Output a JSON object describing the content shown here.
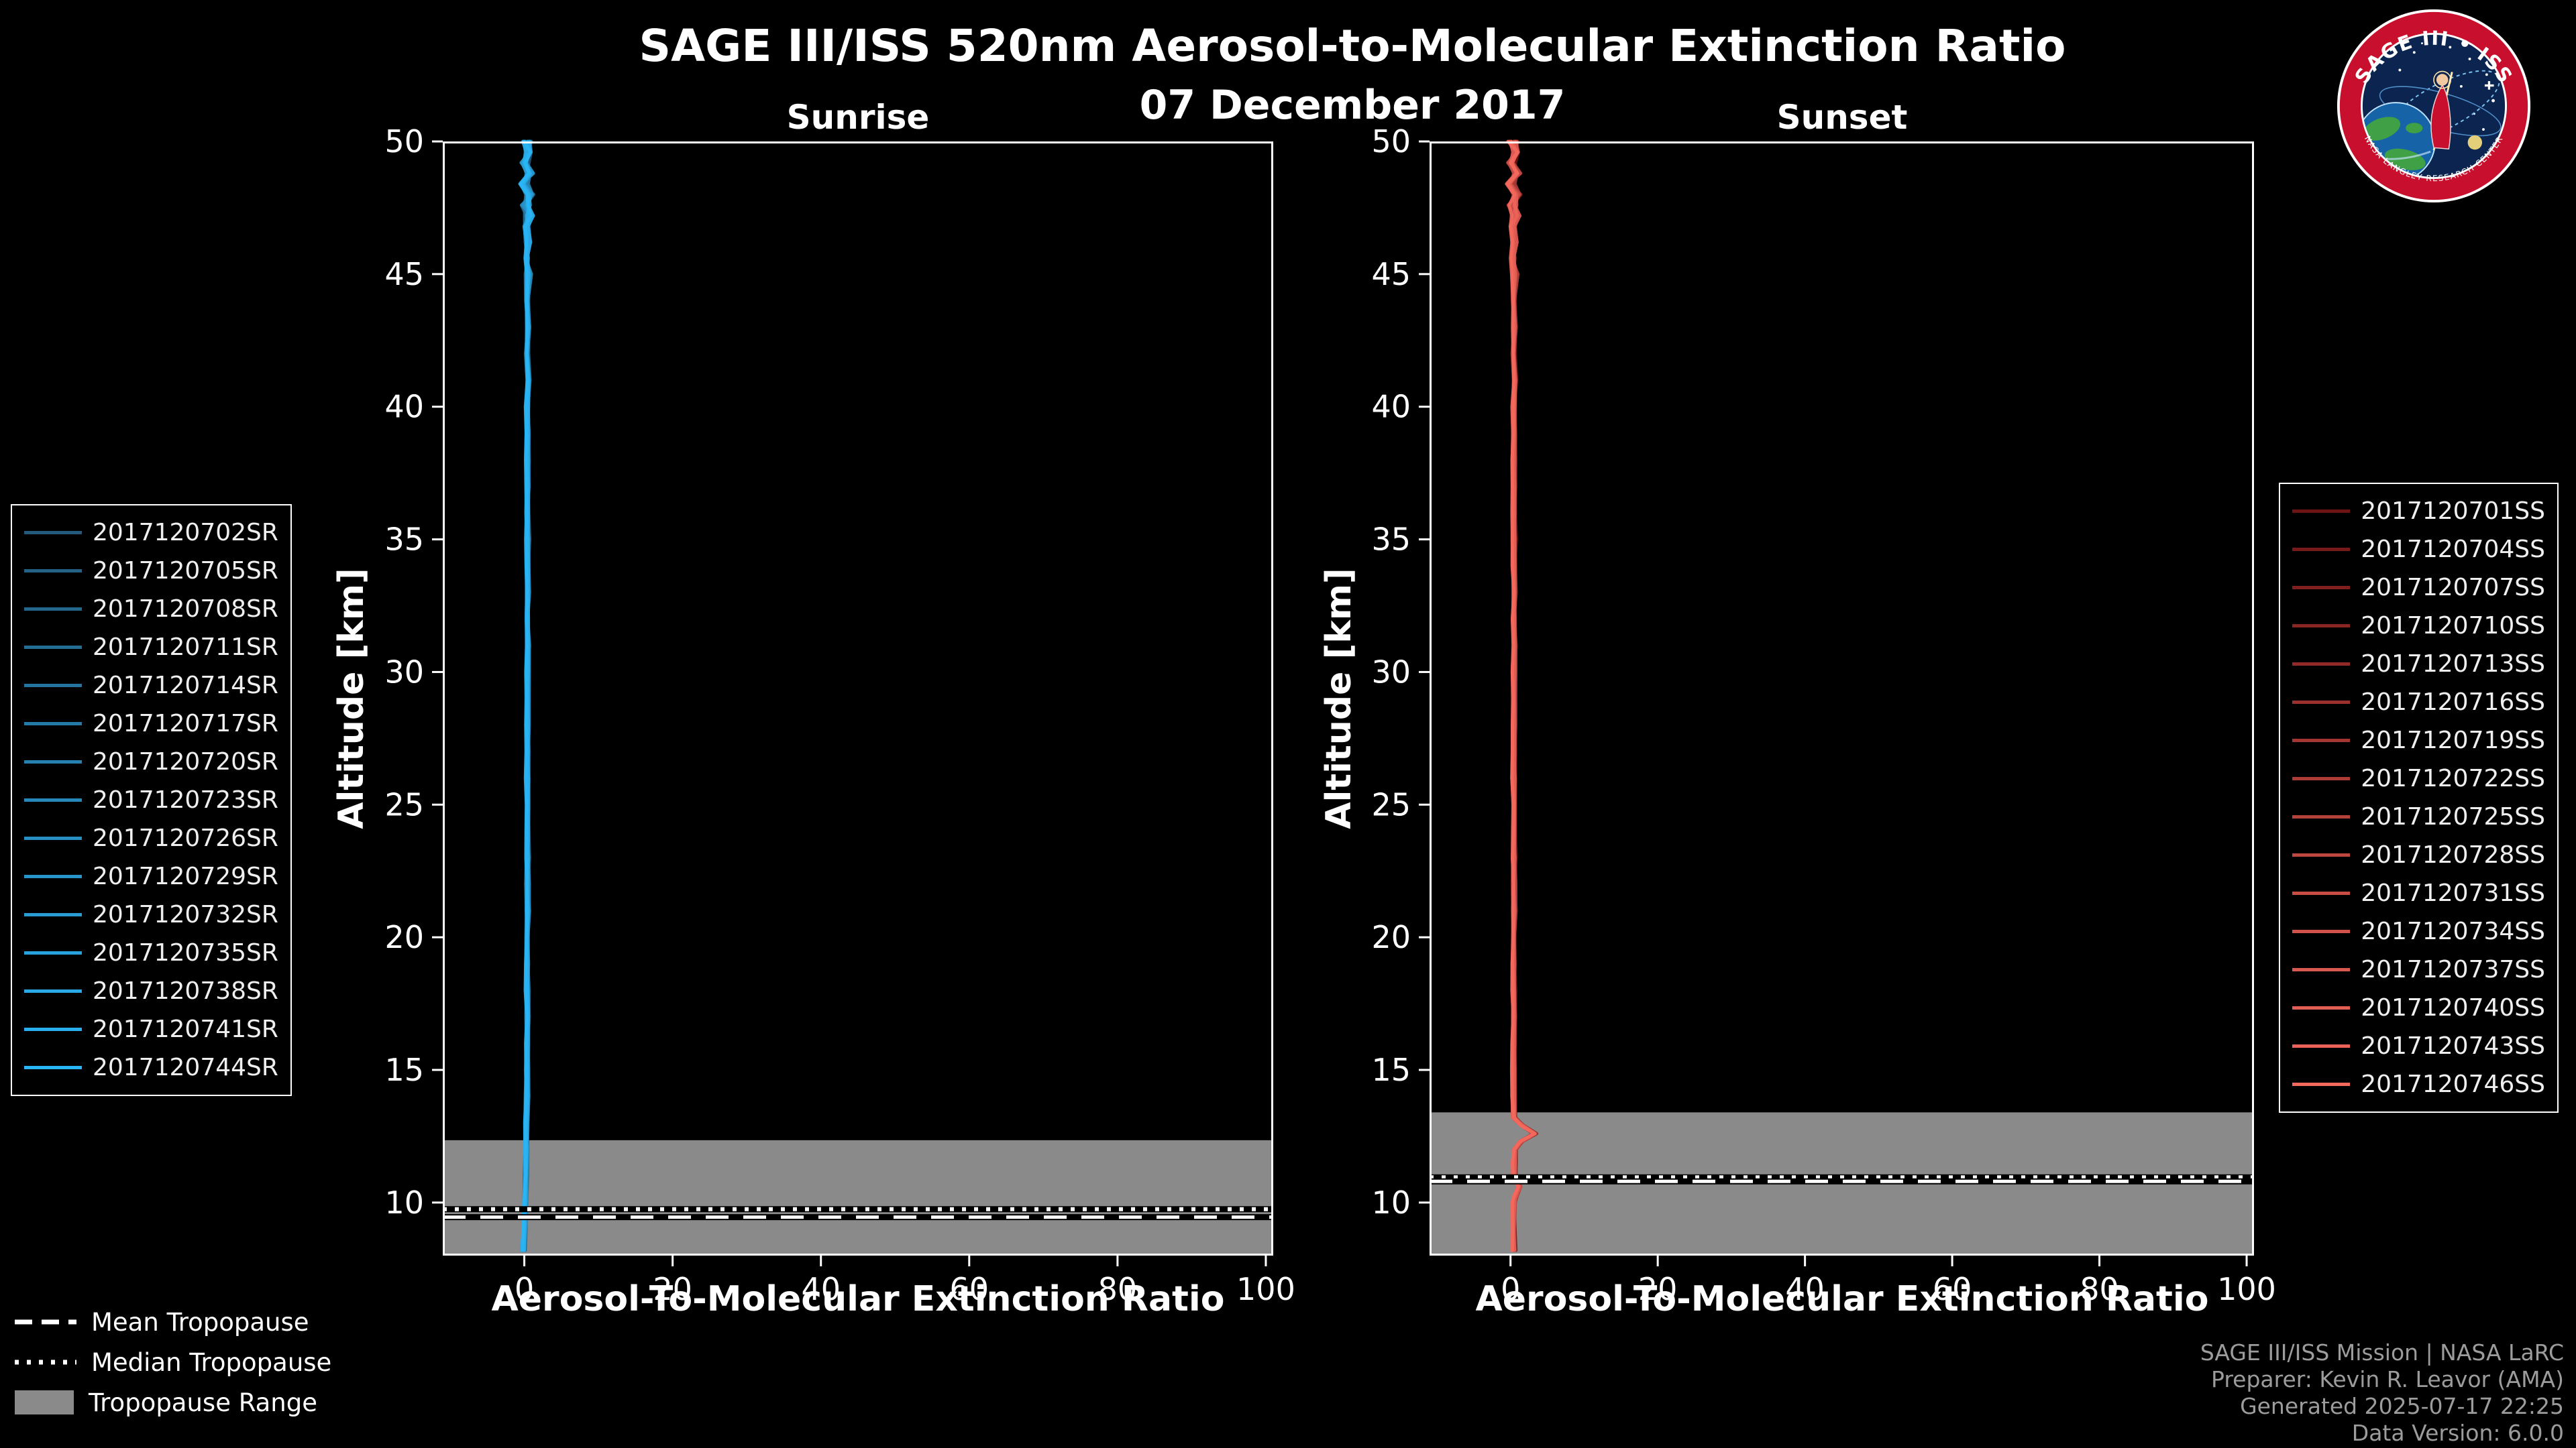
{
  "title": "SAGE III/ISS 520nm Aerosol-to-Molecular Extinction Ratio",
  "date": "07 December 2017",
  "logo": {
    "top_text": "SAGE III • ISS",
    "bottom_text": "NASA LANGLEY RESEARCH CENTER"
  },
  "tropopause_legend": {
    "mean": "Mean Tropopause",
    "median": "Median Tropopause",
    "range": "Tropopause Range"
  },
  "credits": {
    "line1": "SAGE III/ISS Mission | NASA LaRC",
    "line2": "Preparer: Kevin R. Leavor (AMA)",
    "line3": "Generated 2025-07-17 22:25",
    "line4": "Data Version: 6.0.0"
  },
  "chart_data": [
    {
      "type": "line",
      "title": "Sunrise",
      "xlabel": "Aerosol-To-Molecular Extinction Ratio",
      "ylabel": "Altitude [km]",
      "xlim": [
        -11,
        101
      ],
      "ylim": [
        8,
        50
      ],
      "xticks": [
        0,
        20,
        40,
        60,
        80,
        100
      ],
      "yticks": [
        10,
        15,
        20,
        25,
        30,
        35,
        40,
        45,
        50
      ],
      "grid": false,
      "legend_position": "outside-left",
      "tropopause": {
        "mean_km": 9.45,
        "median_km": 9.75,
        "range_km": [
          8,
          12.35
        ]
      },
      "series": [
        {
          "name": "2017120702SR",
          "color": "#235a7c"
        },
        {
          "name": "2017120705SR",
          "color": "#236185"
        },
        {
          "name": "2017120708SR",
          "color": "#24678d"
        },
        {
          "name": "2017120711SR",
          "color": "#246e96"
        },
        {
          "name": "2017120714SR",
          "color": "#25749f"
        },
        {
          "name": "2017120717SR",
          "color": "#257ba8"
        },
        {
          "name": "2017120720SR",
          "color": "#2681b0"
        },
        {
          "name": "2017120723SR",
          "color": "#2688b9"
        },
        {
          "name": "2017120726SR",
          "color": "#278fc2"
        },
        {
          "name": "2017120729SR",
          "color": "#2795ca"
        },
        {
          "name": "2017120732SR",
          "color": "#289cd3"
        },
        {
          "name": "2017120735SR",
          "color": "#28a2dc"
        },
        {
          "name": "2017120738SR",
          "color": "#29a9e5"
        },
        {
          "name": "2017120741SR",
          "color": "#29afed"
        },
        {
          "name": "2017120744SR",
          "color": "#29b6f6"
        }
      ],
      "profile": [
        [
          50,
          0.3
        ],
        [
          49.6,
          0.6
        ],
        [
          49.2,
          0.1
        ],
        [
          48.8,
          0.75
        ],
        [
          48.4,
          0.05
        ],
        [
          48,
          0.7
        ],
        [
          47.6,
          0.2
        ],
        [
          47.2,
          0.65
        ],
        [
          46.8,
          0.25
        ],
        [
          46.2,
          0.55
        ],
        [
          45.6,
          0.3
        ],
        [
          45,
          0.5
        ],
        [
          44,
          0.35
        ],
        [
          43,
          0.5
        ],
        [
          42,
          0.35
        ],
        [
          41,
          0.5
        ],
        [
          40,
          0.4
        ],
        [
          39,
          0.45
        ],
        [
          38,
          0.4
        ],
        [
          37,
          0.45
        ],
        [
          36,
          0.4
        ],
        [
          35,
          0.45
        ],
        [
          34,
          0.4
        ],
        [
          33,
          0.45
        ],
        [
          32,
          0.4
        ],
        [
          31,
          0.45
        ],
        [
          30,
          0.4
        ],
        [
          29,
          0.45
        ],
        [
          28,
          0.4
        ],
        [
          27,
          0.45
        ],
        [
          26,
          0.4
        ],
        [
          25,
          0.45
        ],
        [
          24,
          0.4
        ],
        [
          23,
          0.45
        ],
        [
          22,
          0.4
        ],
        [
          21,
          0.45
        ],
        [
          20,
          0.4
        ],
        [
          19,
          0.4
        ],
        [
          18,
          0.4
        ],
        [
          17,
          0.4
        ],
        [
          16,
          0.4
        ],
        [
          15,
          0.35
        ],
        [
          14,
          0.35
        ],
        [
          13,
          0.3
        ],
        [
          12,
          0.25
        ],
        [
          11,
          0.2
        ],
        [
          10,
          0.1
        ],
        [
          9,
          0.0
        ],
        [
          8.2,
          -0.15
        ]
      ]
    },
    {
      "type": "line",
      "title": "Sunset",
      "xlabel": "Aerosol-To-Molecular Extinction Ratio",
      "ylabel": "Altitude [km]",
      "xlim": [
        -11,
        101
      ],
      "ylim": [
        8,
        50
      ],
      "xticks": [
        0,
        20,
        40,
        60,
        80,
        100
      ],
      "yticks": [
        10,
        15,
        20,
        25,
        30,
        35,
        40,
        45,
        50
      ],
      "grid": false,
      "legend_position": "outside-right",
      "tropopause": {
        "mean_km": 10.8,
        "median_km": 10.95,
        "range_km": [
          8,
          13.4
        ]
      },
      "series": [
        {
          "name": "2017120701SS",
          "color": "#6e1414"
        },
        {
          "name": "2017120704SS",
          "color": "#771a19"
        },
        {
          "name": "2017120707SS",
          "color": "#801f1e"
        },
        {
          "name": "2017120710SS",
          "color": "#892523"
        },
        {
          "name": "2017120713SS",
          "color": "#922b28"
        },
        {
          "name": "2017120716SS",
          "color": "#9b302d"
        },
        {
          "name": "2017120719SS",
          "color": "#a43631"
        },
        {
          "name": "2017120722SS",
          "color": "#ad3c36"
        },
        {
          "name": "2017120725SS",
          "color": "#b5413b"
        },
        {
          "name": "2017120728SS",
          "color": "#be4740"
        },
        {
          "name": "2017120731SS",
          "color": "#c74d45"
        },
        {
          "name": "2017120734SS",
          "color": "#d0524a"
        },
        {
          "name": "2017120737SS",
          "color": "#d9584f"
        },
        {
          "name": "2017120740SS",
          "color": "#e25e54"
        },
        {
          "name": "2017120743SS",
          "color": "#eb6359"
        },
        {
          "name": "2017120746SS",
          "color": "#f4695e"
        }
      ],
      "profile": [
        [
          50,
          0.35
        ],
        [
          49.6,
          0.75
        ],
        [
          49.2,
          0.15
        ],
        [
          48.8,
          0.9
        ],
        [
          48.4,
          0.1
        ],
        [
          48,
          0.85
        ],
        [
          47.6,
          0.25
        ],
        [
          47.2,
          0.7
        ],
        [
          46.8,
          0.3
        ],
        [
          46.2,
          0.6
        ],
        [
          45.6,
          0.35
        ],
        [
          45,
          0.55
        ],
        [
          44,
          0.4
        ],
        [
          43,
          0.55
        ],
        [
          42,
          0.4
        ],
        [
          41,
          0.55
        ],
        [
          40,
          0.45
        ],
        [
          39,
          0.5
        ],
        [
          38,
          0.45
        ],
        [
          37,
          0.5
        ],
        [
          36,
          0.45
        ],
        [
          35,
          0.5
        ],
        [
          34,
          0.45
        ],
        [
          33,
          0.5
        ],
        [
          32,
          0.45
        ],
        [
          31,
          0.5
        ],
        [
          30,
          0.45
        ],
        [
          29,
          0.5
        ],
        [
          28,
          0.45
        ],
        [
          27,
          0.5
        ],
        [
          26,
          0.45
        ],
        [
          25,
          0.5
        ],
        [
          24,
          0.45
        ],
        [
          23,
          0.5
        ],
        [
          22,
          0.45
        ],
        [
          21,
          0.5
        ],
        [
          20,
          0.45
        ],
        [
          19,
          0.45
        ],
        [
          18,
          0.45
        ],
        [
          17,
          0.45
        ],
        [
          16,
          0.45
        ],
        [
          15,
          0.4
        ],
        [
          14,
          0.4
        ],
        [
          13.2,
          0.5
        ],
        [
          12.9,
          1.6
        ],
        [
          12.6,
          3.3
        ],
        [
          12.3,
          1.4
        ],
        [
          12,
          0.55
        ],
        [
          11.5,
          0.5
        ],
        [
          11,
          0.55
        ],
        [
          10.6,
          1.15
        ],
        [
          10.2,
          0.6
        ],
        [
          10,
          0.45
        ],
        [
          9,
          0.4
        ],
        [
          8.2,
          0.45
        ]
      ]
    }
  ]
}
